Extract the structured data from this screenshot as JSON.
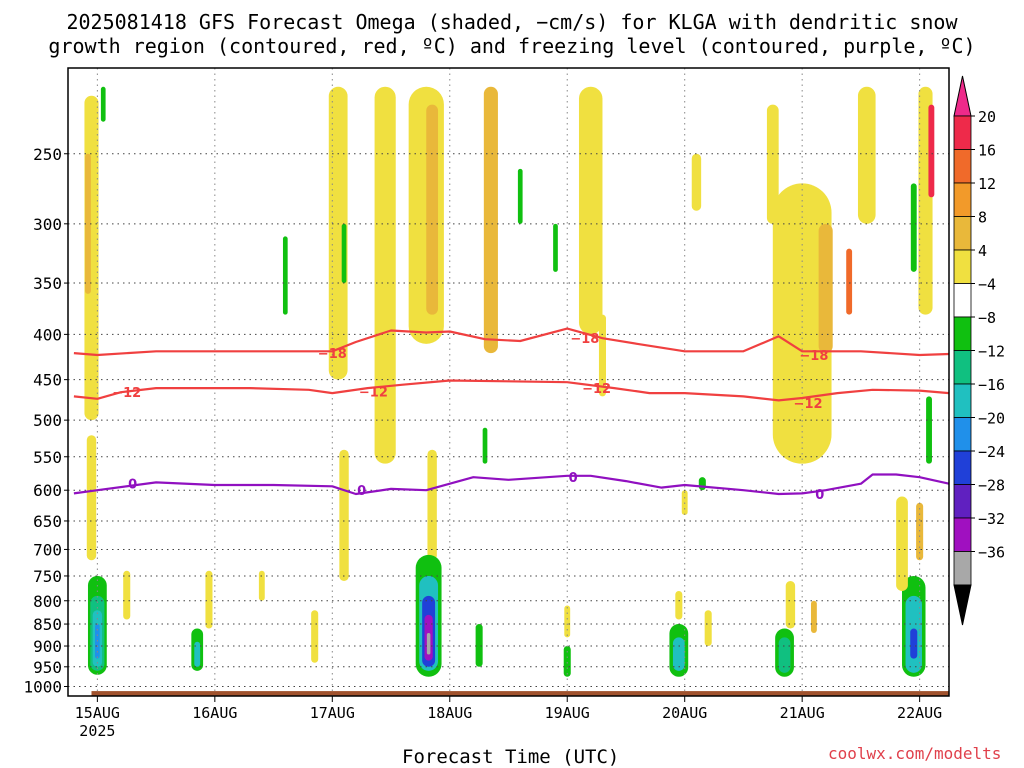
{
  "title_line1": "2025081418 GFS Forecast Omega (shaded, −cm/s) for KLGA with dendritic snow",
  "title_line2": "growth region (contoured, red, ºC) and freezing level (contoured, purple, ºC)",
  "xaxis_label": "Forecast Time (UTC)",
  "credit": "coolwx.com/modelts",
  "chart_data": {
    "type": "heatmap",
    "title": "2025081418 GFS Forecast Omega (shaded, −cm/s) for KLGA with dendritic snow growth region (contoured, red, ºC) and freezing level (contoured, purple, ºC)",
    "xlabel": "Forecast Time (UTC)",
    "ylabel": "",
    "x_range_days": [
      14.75,
      22.25
    ],
    "y_range_hpa": [
      200,
      1025
    ],
    "y_scale": "log-pressure (inverted)",
    "grid": true,
    "x_ticks": [
      {
        "day": 15,
        "label": "15AUG",
        "sublabel": "2025"
      },
      {
        "day": 16,
        "label": "16AUG",
        "sublabel": ""
      },
      {
        "day": 17,
        "label": "17AUG",
        "sublabel": ""
      },
      {
        "day": 18,
        "label": "18AUG",
        "sublabel": ""
      },
      {
        "day": 19,
        "label": "19AUG",
        "sublabel": ""
      },
      {
        "day": 20,
        "label": "20AUG",
        "sublabel": ""
      },
      {
        "day": 21,
        "label": "21AUG",
        "sublabel": ""
      },
      {
        "day": 22,
        "label": "22AUG",
        "sublabel": ""
      }
    ],
    "y_ticks": [
      250,
      300,
      350,
      400,
      450,
      500,
      550,
      600,
      650,
      700,
      750,
      800,
      850,
      900,
      950,
      1000
    ],
    "colorbar": {
      "labels": [
        "20",
        "16",
        "12",
        "8",
        "4",
        "−4",
        "−8",
        "−12",
        "−16",
        "−20",
        "−24",
        "−28",
        "−32",
        "−36"
      ],
      "bins": [
        {
          "color": "#ee2a4a"
        },
        {
          "color": "#f06a2a"
        },
        {
          "color": "#f29a2a"
        },
        {
          "color": "#e9b83a"
        },
        {
          "color": "#f0e040"
        },
        {
          "color": "#ffffff"
        },
        {
          "color": "#10c010"
        },
        {
          "color": "#10c080"
        },
        {
          "color": "#20c0c0"
        },
        {
          "color": "#2090ea"
        },
        {
          "color": "#2040d8"
        },
        {
          "color": "#6020c0"
        },
        {
          "color": "#a010c0"
        },
        {
          "color": "#a8a8a8"
        }
      ],
      "top_extend_color": "#ee2a8a",
      "bottom_extend_color": "#000000"
    },
    "contours": [
      {
        "name": "−18",
        "color": "#f04040",
        "points": [
          [
            14.8,
            420
          ],
          [
            15.0,
            422
          ],
          [
            15.5,
            418
          ],
          [
            16.5,
            418
          ],
          [
            17.0,
            418
          ],
          [
            17.2,
            408
          ],
          [
            17.5,
            396
          ],
          [
            17.8,
            398
          ],
          [
            18.0,
            397
          ],
          [
            18.3,
            405
          ],
          [
            18.6,
            407
          ],
          [
            19.0,
            394
          ],
          [
            19.3,
            404
          ],
          [
            19.6,
            410
          ],
          [
            20.0,
            418
          ],
          [
            20.5,
            418
          ],
          [
            20.8,
            402
          ],
          [
            21.0,
            418
          ],
          [
            21.5,
            418
          ],
          [
            22.0,
            422
          ],
          [
            22.25,
            421
          ]
        ]
      },
      {
        "name": "−12",
        "color": "#f04040",
        "points": [
          [
            14.8,
            470
          ],
          [
            15.0,
            473
          ],
          [
            15.2,
            465
          ],
          [
            15.5,
            460
          ],
          [
            16.3,
            460
          ],
          [
            16.8,
            462
          ],
          [
            17.0,
            466
          ],
          [
            17.3,
            460
          ],
          [
            17.6,
            456
          ],
          [
            18.0,
            451
          ],
          [
            18.5,
            452
          ],
          [
            19.0,
            453
          ],
          [
            19.4,
            460
          ],
          [
            19.7,
            466
          ],
          [
            20.0,
            466
          ],
          [
            20.5,
            470
          ],
          [
            20.8,
            475
          ],
          [
            21.0,
            472
          ],
          [
            21.3,
            466
          ],
          [
            21.6,
            462
          ],
          [
            22.0,
            463
          ],
          [
            22.25,
            466
          ]
        ]
      },
      {
        "name": "0",
        "color": "#9010c0",
        "points": [
          [
            14.8,
            605
          ],
          [
            15.0,
            600
          ],
          [
            15.5,
            588
          ],
          [
            16.0,
            592
          ],
          [
            16.5,
            592
          ],
          [
            17.0,
            594
          ],
          [
            17.2,
            606
          ],
          [
            17.5,
            598
          ],
          [
            17.8,
            600
          ],
          [
            18.0,
            590
          ],
          [
            18.2,
            580
          ],
          [
            18.5,
            584
          ],
          [
            19.0,
            578
          ],
          [
            19.2,
            578
          ],
          [
            19.5,
            586
          ],
          [
            19.8,
            596
          ],
          [
            20.0,
            592
          ],
          [
            20.5,
            600
          ],
          [
            20.8,
            606
          ],
          [
            21.0,
            605
          ],
          [
            21.2,
            600
          ],
          [
            21.5,
            590
          ],
          [
            21.6,
            576
          ],
          [
            21.8,
            576
          ],
          [
            22.0,
            580
          ],
          [
            22.25,
            590
          ]
        ]
      }
    ],
    "contour_labels": [
      {
        "text": "−18",
        "day": 17.0,
        "hpa": 420,
        "color": "#f04040"
      },
      {
        "text": "−18",
        "day": 19.15,
        "hpa": 404,
        "color": "#f04040"
      },
      {
        "text": "−18",
        "day": 21.1,
        "hpa": 422,
        "color": "#f04040"
      },
      {
        "text": "−12",
        "day": 15.25,
        "hpa": 465,
        "color": "#f04040"
      },
      {
        "text": "−12",
        "day": 17.35,
        "hpa": 464,
        "color": "#f04040"
      },
      {
        "text": "−12",
        "day": 19.25,
        "hpa": 460,
        "color": "#f04040"
      },
      {
        "text": "−12",
        "day": 21.05,
        "hpa": 478,
        "color": "#f04040"
      },
      {
        "text": "0",
        "day": 15.3,
        "hpa": 590,
        "color": "#9010c0"
      },
      {
        "text": "0",
        "day": 17.25,
        "hpa": 600,
        "color": "#9010c0"
      },
      {
        "text": "0",
        "day": 19.05,
        "hpa": 580,
        "color": "#9010c0"
      },
      {
        "text": "0",
        "day": 21.15,
        "hpa": 606,
        "color": "#9010c0"
      }
    ],
    "features": [
      {
        "day": 14.95,
        "p0": 215,
        "p1": 500,
        "w": 0.12,
        "color": "#f0e040"
      },
      {
        "day": 14.92,
        "p0": 250,
        "p1": 360,
        "w": 0.05,
        "color": "#e9b83a"
      },
      {
        "day": 14.95,
        "p0": 520,
        "p1": 720,
        "w": 0.08,
        "color": "#f0e040"
      },
      {
        "day": 15.0,
        "p0": 750,
        "p1": 970,
        "w": 0.16,
        "color": "#10c010"
      },
      {
        "day": 15.0,
        "p0": 790,
        "p1": 960,
        "w": 0.12,
        "color": "#10c080"
      },
      {
        "day": 15.0,
        "p0": 820,
        "p1": 950,
        "w": 0.08,
        "color": "#20c0c0"
      },
      {
        "day": 15.0,
        "p0": 850,
        "p1": 930,
        "w": 0.04,
        "color": "#2090ea"
      },
      {
        "day": 15.25,
        "p0": 740,
        "p1": 840,
        "w": 0.06,
        "color": "#f0e040"
      },
      {
        "day": 15.85,
        "p0": 860,
        "p1": 960,
        "w": 0.1,
        "color": "#10c010"
      },
      {
        "day": 15.85,
        "p0": 890,
        "p1": 950,
        "w": 0.05,
        "color": "#20c0c0"
      },
      {
        "day": 15.95,
        "p0": 740,
        "p1": 860,
        "w": 0.06,
        "color": "#f0e040"
      },
      {
        "day": 16.4,
        "p0": 740,
        "p1": 800,
        "w": 0.05,
        "color": "#f0e040"
      },
      {
        "day": 16.85,
        "p0": 820,
        "p1": 940,
        "w": 0.06,
        "color": "#f0e040"
      },
      {
        "day": 17.05,
        "p0": 210,
        "p1": 450,
        "w": 0.16,
        "color": "#f0e040"
      },
      {
        "day": 17.1,
        "p0": 540,
        "p1": 760,
        "w": 0.08,
        "color": "#f0e040"
      },
      {
        "day": 17.45,
        "p0": 210,
        "p1": 560,
        "w": 0.18,
        "color": "#f0e040"
      },
      {
        "day": 17.8,
        "p0": 210,
        "p1": 410,
        "w": 0.3,
        "color": "#f0e040"
      },
      {
        "day": 17.85,
        "p0": 220,
        "p1": 380,
        "w": 0.1,
        "color": "#e9b83a"
      },
      {
        "day": 18.35,
        "p0": 210,
        "p1": 420,
        "w": 0.12,
        "color": "#e9b83a"
      },
      {
        "day": 17.85,
        "p0": 540,
        "p1": 720,
        "w": 0.08,
        "color": "#f0e040"
      },
      {
        "day": 17.82,
        "p0": 710,
        "p1": 975,
        "w": 0.22,
        "color": "#10c010"
      },
      {
        "day": 17.82,
        "p0": 750,
        "p1": 960,
        "w": 0.16,
        "color": "#20c0c0"
      },
      {
        "day": 17.82,
        "p0": 790,
        "p1": 950,
        "w": 0.11,
        "color": "#2040d8"
      },
      {
        "day": 17.82,
        "p0": 830,
        "p1": 935,
        "w": 0.07,
        "color": "#a010c0"
      },
      {
        "day": 17.82,
        "p0": 870,
        "p1": 920,
        "w": 0.03,
        "color": "#a8a8a8"
      },
      {
        "day": 18.25,
        "p0": 850,
        "p1": 950,
        "w": 0.06,
        "color": "#10c010"
      },
      {
        "day": 19.2,
        "p0": 210,
        "p1": 400,
        "w": 0.2,
        "color": "#f0e040"
      },
      {
        "day": 19.3,
        "p0": 380,
        "p1": 470,
        "w": 0.06,
        "color": "#f0e040"
      },
      {
        "day": 19.0,
        "p0": 900,
        "p1": 975,
        "w": 0.06,
        "color": "#10c010"
      },
      {
        "day": 19.0,
        "p0": 810,
        "p1": 880,
        "w": 0.05,
        "color": "#f0e040"
      },
      {
        "day": 19.95,
        "p0": 850,
        "p1": 975,
        "w": 0.16,
        "color": "#10c010"
      },
      {
        "day": 19.95,
        "p0": 880,
        "p1": 960,
        "w": 0.1,
        "color": "#20c0c0"
      },
      {
        "day": 19.95,
        "p0": 780,
        "p1": 840,
        "w": 0.06,
        "color": "#f0e040"
      },
      {
        "day": 20.2,
        "p0": 820,
        "p1": 900,
        "w": 0.06,
        "color": "#f0e040"
      },
      {
        "day": 20.1,
        "p0": 250,
        "p1": 290,
        "w": 0.08,
        "color": "#f0e040"
      },
      {
        "day": 20.0,
        "p0": 600,
        "p1": 640,
        "w": 0.05,
        "color": "#f0e040"
      },
      {
        "day": 20.75,
        "p0": 220,
        "p1": 300,
        "w": 0.1,
        "color": "#f0e040"
      },
      {
        "day": 21.0,
        "p0": 270,
        "p1": 560,
        "w": 0.5,
        "color": "#f0e040"
      },
      {
        "day": 21.2,
        "p0": 300,
        "p1": 420,
        "w": 0.12,
        "color": "#e9b83a"
      },
      {
        "day": 21.4,
        "p0": 320,
        "p1": 380,
        "w": 0.05,
        "color": "#f06a2a"
      },
      {
        "day": 21.55,
        "p0": 210,
        "p1": 300,
        "w": 0.15,
        "color": "#f0e040"
      },
      {
        "day": 20.85,
        "p0": 860,
        "p1": 975,
        "w": 0.16,
        "color": "#10c010"
      },
      {
        "day": 20.85,
        "p0": 880,
        "p1": 965,
        "w": 0.1,
        "color": "#10c080"
      },
      {
        "day": 20.9,
        "p0": 760,
        "p1": 860,
        "w": 0.08,
        "color": "#f0e040"
      },
      {
        "day": 21.1,
        "p0": 800,
        "p1": 870,
        "w": 0.05,
        "color": "#e9b83a"
      },
      {
        "day": 21.95,
        "p0": 750,
        "p1": 975,
        "w": 0.2,
        "color": "#10c010"
      },
      {
        "day": 21.95,
        "p0": 790,
        "p1": 965,
        "w": 0.14,
        "color": "#20c0c0"
      },
      {
        "day": 21.95,
        "p0": 860,
        "p1": 930,
        "w": 0.06,
        "color": "#2040d8"
      },
      {
        "day": 21.85,
        "p0": 610,
        "p1": 780,
        "w": 0.1,
        "color": "#f0e040"
      },
      {
        "day": 22.0,
        "p0": 620,
        "p1": 720,
        "w": 0.06,
        "color": "#e9b83a"
      },
      {
        "day": 22.05,
        "p0": 210,
        "p1": 380,
        "w": 0.12,
        "color": "#f0e040"
      },
      {
        "day": 22.1,
        "p0": 220,
        "p1": 280,
        "w": 0.05,
        "color": "#ee2a4a"
      },
      {
        "day": 22.08,
        "p0": 470,
        "p1": 560,
        "w": 0.05,
        "color": "#10c010"
      },
      {
        "day": 15.05,
        "p0": 210,
        "p1": 230,
        "w": 0.04,
        "color": "#10c010"
      },
      {
        "day": 16.6,
        "p0": 310,
        "p1": 380,
        "w": 0.04,
        "color": "#10c010"
      },
      {
        "day": 17.1,
        "p0": 300,
        "p1": 350,
        "w": 0.04,
        "color": "#10c010"
      },
      {
        "day": 18.6,
        "p0": 260,
        "p1": 300,
        "w": 0.04,
        "color": "#10c010"
      },
      {
        "day": 18.3,
        "p0": 510,
        "p1": 560,
        "w": 0.04,
        "color": "#10c010"
      },
      {
        "day": 18.9,
        "p0": 300,
        "p1": 340,
        "w": 0.04,
        "color": "#10c010"
      },
      {
        "day": 20.15,
        "p0": 580,
        "p1": 600,
        "w": 0.06,
        "color": "#10c010"
      },
      {
        "day": 21.95,
        "p0": 270,
        "p1": 340,
        "w": 0.05,
        "color": "#10c010"
      }
    ],
    "ground": {
      "color": "#a0522d",
      "surface_hpa": 1012
    }
  }
}
